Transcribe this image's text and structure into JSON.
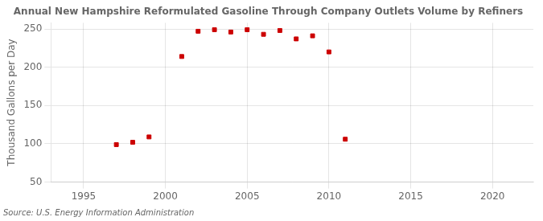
{
  "chart_data": {
    "type": "scatter",
    "title": "Annual New Hampshire Reformulated Gasoline Through Company Outlets Volume by Refiners",
    "ylabel": "Thousand Gallons per Day",
    "source": "Source: U.S. Energy Information Administration",
    "x": [
      1997,
      1998,
      1999,
      2001,
      2002,
      2003,
      2004,
      2005,
      2006,
      2007,
      2008,
      2009,
      2010,
      2011
    ],
    "values": [
      99,
      102,
      109,
      214,
      247,
      249,
      246,
      249,
      243,
      248,
      237,
      241,
      220,
      106
    ],
    "color": "#cc0000",
    "marker": "square",
    "xlim": [
      1993,
      2022.5
    ],
    "ylim": [
      50,
      258
    ],
    "xticks": [
      1995,
      2000,
      2005,
      2010,
      2015,
      2020
    ],
    "yticks": [
      50,
      100,
      150,
      200,
      250
    ],
    "grid": true
  }
}
